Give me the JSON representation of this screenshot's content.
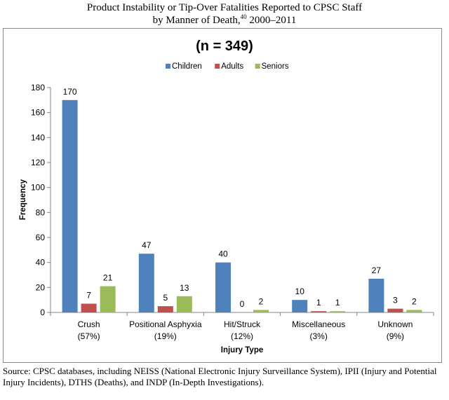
{
  "figure": {
    "title_line1": "Product Instability or Tip-Over Fatalities Reported to CPSC Staff",
    "title_line2_prefix": "by Manner of Death,",
    "title_line2_sup": "40",
    "title_line2_suffix": " 2000–2011"
  },
  "chart_data": {
    "type": "bar",
    "title": "(n = 349)",
    "xlabel": "Injury Type",
    "ylabel": "Frequency",
    "ylim": [
      0,
      180
    ],
    "yticks": [
      0,
      20,
      40,
      60,
      80,
      100,
      120,
      140,
      160,
      180
    ],
    "grid": false,
    "legend_position": "top",
    "categories": [
      [
        "Crush",
        "(57%)"
      ],
      [
        "Positional Asphyxia",
        "(19%)"
      ],
      [
        "Hit/Struck",
        "(12%)"
      ],
      [
        "Miscellaneous",
        "(3%)"
      ],
      [
        "Unknown",
        "(9%)"
      ]
    ],
    "series": [
      {
        "name": "Children",
        "color": "#4f81bd",
        "values": [
          170,
          47,
          40,
          10,
          27
        ]
      },
      {
        "name": "Adults",
        "color": "#c0504d",
        "values": [
          7,
          5,
          0,
          1,
          3
        ]
      },
      {
        "name": "Seniors",
        "color": "#9bbb59",
        "values": [
          21,
          13,
          2,
          1,
          2
        ]
      }
    ]
  },
  "source_note": "Source: CPSC databases, including NEISS (National Electronic Injury Surveillance System), IPII (Injury and Potential Injury Incidents), DTHS (Deaths), and INDP (In-Depth Investigations)."
}
